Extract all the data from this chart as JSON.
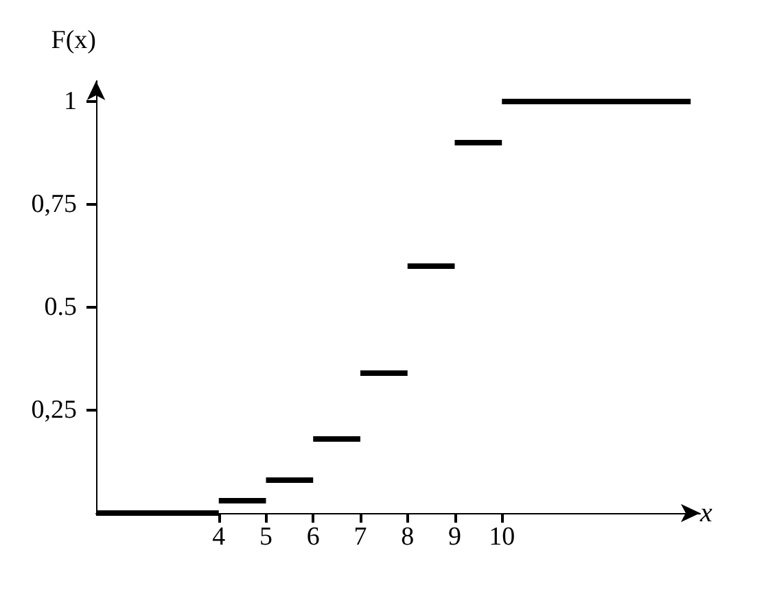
{
  "chart_data": {
    "type": "step",
    "xlabel": "x",
    "ylabel": "F(x)",
    "x": [
      1.4,
      4,
      5,
      6,
      7,
      8,
      9,
      10,
      14
    ],
    "series": [
      {
        "color": "#000000",
        "values": [
          0,
          0.03,
          0.08,
          0.18,
          0.34,
          0.6,
          0.9,
          1,
          1
        ]
      }
    ],
    "xlim": [
      1.4,
      14.2
    ],
    "xticks": [
      4,
      5,
      6,
      7,
      8,
      9,
      10
    ],
    "ylim": [
      0,
      1.05
    ],
    "yticks": [
      {
        "value": 0.25,
        "label": "0,25"
      },
      0.5,
      {
        "value": 0.75,
        "label": "0,75"
      },
      1
    ],
    "grid": false
  }
}
